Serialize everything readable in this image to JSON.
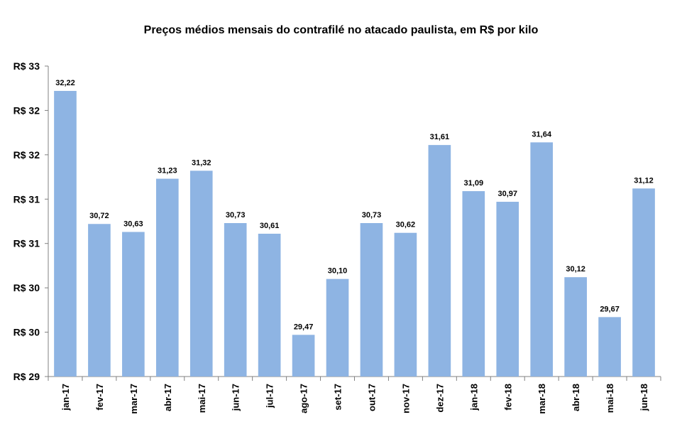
{
  "chart_data": {
    "type": "bar",
    "title": "Preços médios mensais do contrafilé no atacado paulista, em R$ por kilo",
    "xlabel": "",
    "ylabel": "",
    "ylim": [
      29,
      32.5
    ],
    "y_ticks": [
      29,
      29.5,
      30,
      30.5,
      31,
      31.5,
      32,
      32.5
    ],
    "y_tick_labels": [
      "R$ 29",
      "R$ 30",
      "R$ 30",
      "R$ 31",
      "R$ 31",
      "R$ 32",
      "R$ 32",
      "R$ 33"
    ],
    "categories": [
      "jan-17",
      "fev-17",
      "mar-17",
      "abr-17",
      "mai-17",
      "jun-17",
      "jul-17",
      "ago-17",
      "set-17",
      "out-17",
      "nov-17",
      "dez-17",
      "jan-18",
      "fev-18",
      "mar-18",
      "abr-18",
      "mai-18",
      "jun-18"
    ],
    "values": [
      32.22,
      30.72,
      30.63,
      31.23,
      31.32,
      30.73,
      30.61,
      29.47,
      30.1,
      30.73,
      30.62,
      31.61,
      31.09,
      30.97,
      31.64,
      30.12,
      29.67,
      31.12
    ],
    "data_labels": [
      "32,22",
      "30,72",
      "30,63",
      "31,23",
      "31,32",
      "30,73",
      "30,61",
      "29,47",
      "30,10",
      "30,73",
      "30,62",
      "31,61",
      "31,09",
      "30,97",
      "31,64",
      "30,12",
      "29,67",
      "31,12"
    ],
    "bar_color": "#8EB4E3",
    "grid": false,
    "legend": "none"
  }
}
